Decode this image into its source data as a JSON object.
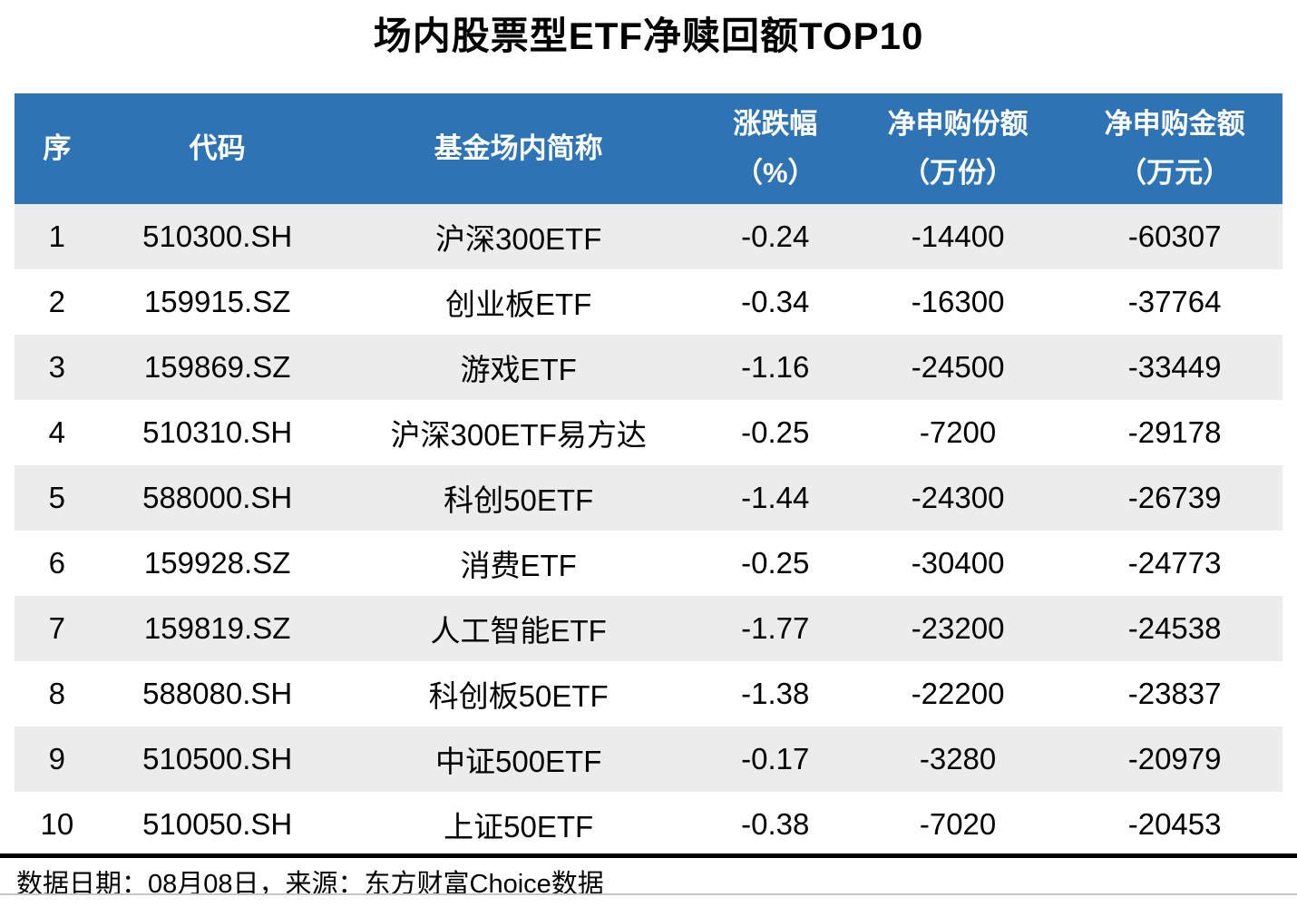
{
  "title": "场内股票型ETF净赎回额TOP10",
  "footer": {
    "text": "数据日期：08月08日，来源：东方财富Choice数据"
  },
  "colors": {
    "header_bg": "#2E74B5",
    "header_text": "#FFFFFF",
    "row_stripe": "#ECECEC",
    "row_plain": "#FFFFFF",
    "text": "#000000",
    "divider_thick": "#000000",
    "divider_thin": "#C6C6C6"
  },
  "table": {
    "columns": [
      {
        "key": "seq",
        "line1": "序",
        "line2": ""
      },
      {
        "key": "code",
        "line1": "代码",
        "line2": ""
      },
      {
        "key": "name",
        "line1": "基金场内简称",
        "line2": ""
      },
      {
        "key": "change_pct",
        "line1": "涨跌幅",
        "line2": "（%）"
      },
      {
        "key": "net_shares",
        "line1": "净申购份额",
        "line2": "（万份）"
      },
      {
        "key": "net_amount",
        "line1": "净申购金额",
        "line2": "（万元）"
      }
    ],
    "rows": [
      {
        "seq": "1",
        "code": "510300.SH",
        "name": "沪深300ETF",
        "change_pct": "-0.24",
        "net_shares": "-14400",
        "net_amount": "-60307"
      },
      {
        "seq": "2",
        "code": "159915.SZ",
        "name": "创业板ETF",
        "change_pct": "-0.34",
        "net_shares": "-16300",
        "net_amount": "-37764"
      },
      {
        "seq": "3",
        "code": "159869.SZ",
        "name": "游戏ETF",
        "change_pct": "-1.16",
        "net_shares": "-24500",
        "net_amount": "-33449"
      },
      {
        "seq": "4",
        "code": "510310.SH",
        "name": "沪深300ETF易方达",
        "change_pct": "-0.25",
        "net_shares": "-7200",
        "net_amount": "-29178"
      },
      {
        "seq": "5",
        "code": "588000.SH",
        "name": "科创50ETF",
        "change_pct": "-1.44",
        "net_shares": "-24300",
        "net_amount": "-26739"
      },
      {
        "seq": "6",
        "code": "159928.SZ",
        "name": "消费ETF",
        "change_pct": "-0.25",
        "net_shares": "-30400",
        "net_amount": "-24773"
      },
      {
        "seq": "7",
        "code": "159819.SZ",
        "name": "人工智能ETF",
        "change_pct": "-1.77",
        "net_shares": "-23200",
        "net_amount": "-24538"
      },
      {
        "seq": "8",
        "code": "588080.SH",
        "name": "科创板50ETF",
        "change_pct": "-1.38",
        "net_shares": "-22200",
        "net_amount": "-23837"
      },
      {
        "seq": "9",
        "code": "510500.SH",
        "name": "中证500ETF",
        "change_pct": "-0.17",
        "net_shares": "-3280",
        "net_amount": "-20979"
      },
      {
        "seq": "10",
        "code": "510050.SH",
        "name": "上证50ETF",
        "change_pct": "-0.38",
        "net_shares": "-7020",
        "net_amount": "-20453"
      }
    ]
  },
  "chart_data": {
    "type": "table",
    "title": "场内股票型ETF净赎回额TOP10",
    "columns": [
      "序",
      "代码",
      "基金场内简称",
      "涨跌幅（%）",
      "净申购份额（万份）",
      "净申购金额（万元）"
    ],
    "rows": [
      [
        1,
        "510300.SH",
        "沪深300ETF",
        -0.24,
        -14400,
        -60307
      ],
      [
        2,
        "159915.SZ",
        "创业板ETF",
        -0.34,
        -16300,
        -37764
      ],
      [
        3,
        "159869.SZ",
        "游戏ETF",
        -1.16,
        -24500,
        -33449
      ],
      [
        4,
        "510310.SH",
        "沪深300ETF易方达",
        -0.25,
        -7200,
        -29178
      ],
      [
        5,
        "588000.SH",
        "科创50ETF",
        -1.44,
        -24300,
        -26739
      ],
      [
        6,
        "159928.SZ",
        "消费ETF",
        -0.25,
        -30400,
        -24773
      ],
      [
        7,
        "159819.SZ",
        "人工智能ETF",
        -1.77,
        -23200,
        -24538
      ],
      [
        8,
        "588080.SH",
        "科创板50ETF",
        -1.38,
        -22200,
        -23837
      ],
      [
        9,
        "510500.SH",
        "中证500ETF",
        -0.17,
        -3280,
        -20979
      ],
      [
        10,
        "510050.SH",
        "上证50ETF",
        -0.38,
        -7020,
        -20453
      ]
    ],
    "note": "数据日期：08月08日，来源：东方财富Choice数据",
    "layout_hints": {
      "header_background": "#2E74B5",
      "striped_rows": true,
      "stripe_color": "#ECECEC",
      "gridlines": false
    }
  }
}
